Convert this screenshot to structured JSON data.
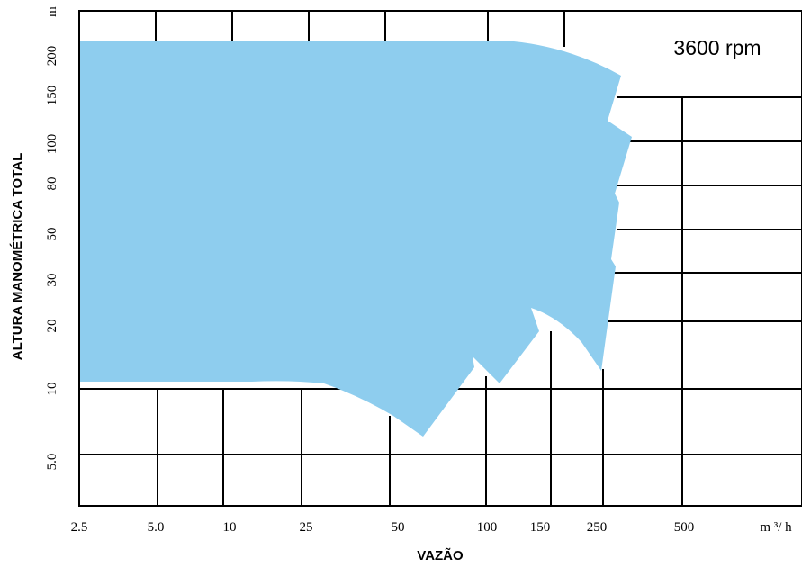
{
  "chart_data": {
    "type": "area",
    "title": "",
    "annotation": "3600 rpm",
    "xlabel": "VAZÃO",
    "ylabel": "ALTURA MANOMÉTRICA TOTAL",
    "x_unit": "m ³/ h",
    "y_unit": "m",
    "x_ticks": [
      "2.5",
      "5.0",
      "10",
      "25",
      "50",
      "100",
      "150",
      "250",
      "500"
    ],
    "y_ticks": [
      "5.0",
      "10",
      "20",
      "30",
      "50",
      "80",
      "100",
      "150",
      "200"
    ],
    "fill_color": "#8ecdee",
    "grid": true
  }
}
